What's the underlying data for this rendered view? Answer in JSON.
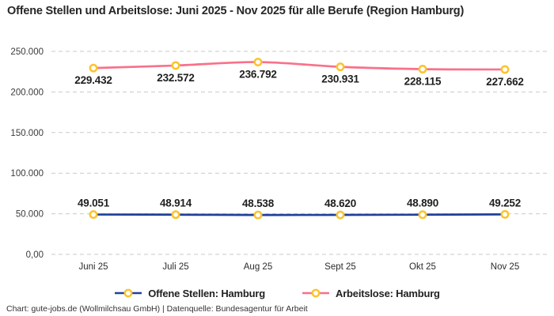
{
  "title": "Offene Stellen und Arbeitslose: Juni 2025 - Nov 2025 für alle Berufe (Region Hamburg)",
  "attribution": "Chart: gute-jobs.de (Wollmilchsau GmbH) | Datenquelle: Bundesagentur für Arbeit",
  "chart_data": {
    "type": "line",
    "title": "Offene Stellen und Arbeitslose: Juni 2025 - Nov 2025 für alle Berufe (Region Hamburg)",
    "categories": [
      "Juni 25",
      "Juli 25",
      "Aug 25",
      "Sept 25",
      "Okt 25",
      "Nov 25"
    ],
    "series": [
      {
        "name": "Offene Stellen: Hamburg",
        "color": "#20409a",
        "label_position": "above",
        "values": [
          49051,
          48914,
          48538,
          48620,
          48890,
          49252
        ],
        "labels": [
          "49.051",
          "48.914",
          "48.538",
          "48.620",
          "48.890",
          "49.252"
        ]
      },
      {
        "name": "Arbeitslose: Hamburg",
        "color": "#f8718a",
        "label_position": "below",
        "values": [
          229432,
          232572,
          236792,
          230931,
          228115,
          227662
        ],
        "labels": [
          "229.432",
          "232.572",
          "236.792",
          "230.931",
          "228.115",
          "227.662"
        ]
      }
    ],
    "marker": {
      "shape": "circle",
      "stroke": "#fcc32d",
      "fill": "#ffffff"
    },
    "y_ticks": [
      {
        "value": 250000,
        "label": "250.000"
      },
      {
        "value": 200000,
        "label": "200.000"
      },
      {
        "value": 150000,
        "label": "150.000"
      },
      {
        "value": 100000,
        "label": "100.000"
      },
      {
        "value": 50000,
        "label": "50.000"
      },
      {
        "value": 0,
        "label": "0,00"
      }
    ],
    "ylim": [
      0,
      250000
    ],
    "xlabel": "",
    "ylabel": "",
    "grid": "horizontal-dashed",
    "legend_position": "bottom"
  }
}
